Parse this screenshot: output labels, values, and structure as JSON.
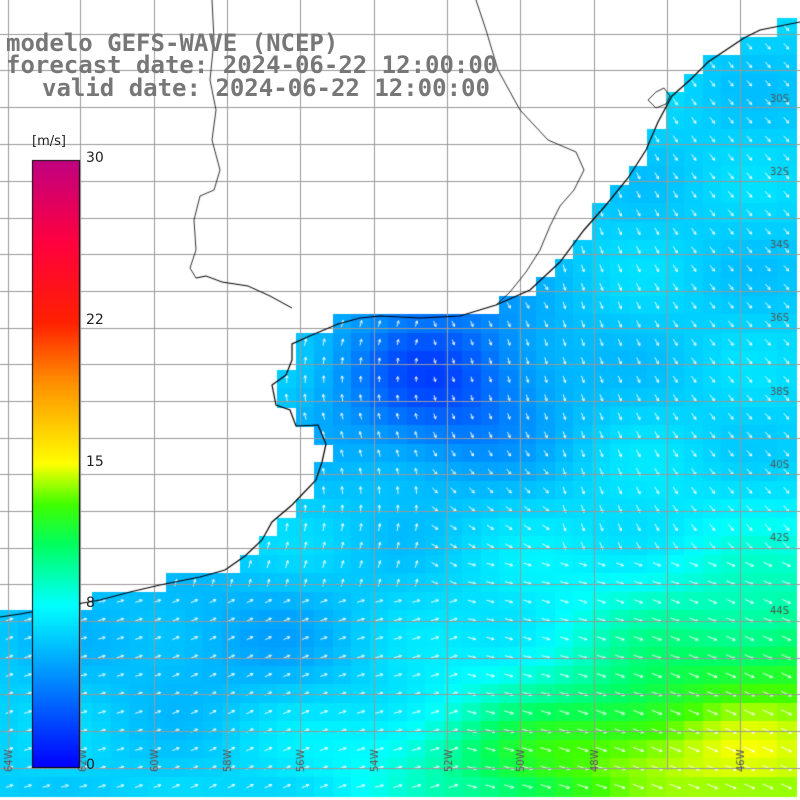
{
  "title": {
    "line1": "modelo GEFS-WAVE (NCEP)",
    "line2": "forecast date: 2024-06-22 12:00:00",
    "line3": "valid date: 2024-06-22 12:00:00"
  },
  "colorbar": {
    "unit": "[m/s]",
    "min": 0,
    "max": 30,
    "ticks": [
      {
        "value": 30,
        "label": "30"
      },
      {
        "value": 22,
        "label": "22"
      },
      {
        "value": 15,
        "label": "15"
      },
      {
        "value": 8,
        "label": "8"
      },
      {
        "value": 0,
        "label": "0"
      }
    ],
    "stops": [
      {
        "value": 0,
        "color": "#0000ff"
      },
      {
        "value": 3,
        "color": "#0060ff"
      },
      {
        "value": 6,
        "color": "#00c0ff"
      },
      {
        "value": 8,
        "color": "#00ffff"
      },
      {
        "value": 11,
        "color": "#00ff60"
      },
      {
        "value": 13,
        "color": "#40ff00"
      },
      {
        "value": 15,
        "color": "#ffff00"
      },
      {
        "value": 19,
        "color": "#ff9000"
      },
      {
        "value": 22,
        "color": "#ff2000"
      },
      {
        "value": 26,
        "color": "#ff0040"
      },
      {
        "value": 30,
        "color": "#c00080"
      }
    ]
  },
  "lat_labels": [
    "30S",
    "32S",
    "34S",
    "36S",
    "38S",
    "40S",
    "42S",
    "44S"
  ],
  "lon_labels": [
    "64W",
    "62W",
    "60W",
    "58W",
    "56W",
    "54W",
    "52W",
    "50W",
    "48W",
    "46W"
  ],
  "map_colors": {
    "land": "#ffffff",
    "coast": "#000000",
    "grid": "#999999",
    "arrow": "#ffffff"
  }
}
